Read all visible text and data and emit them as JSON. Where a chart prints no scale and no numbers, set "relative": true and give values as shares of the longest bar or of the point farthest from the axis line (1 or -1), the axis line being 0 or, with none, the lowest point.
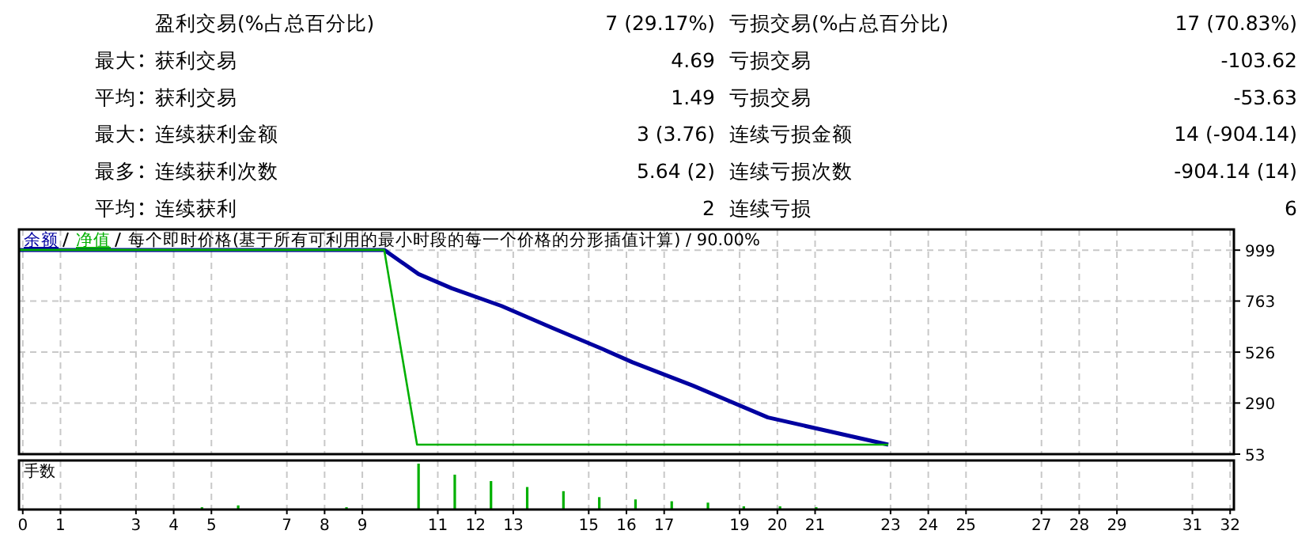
{
  "chart_data": [
    {
      "type": "other",
      "categories": [
        null,
        "最大",
        "平均",
        "最大",
        "最多",
        "平均"
      ],
      "annotations": [
        "盈利交易(%占总百分比)",
        "7 (29.17%)",
        "亏损交易(%占总百分比)",
        "17 (70.83%)",
        "获利交易",
        "4.69",
        "亏损交易",
        "-103.62",
        "获利交易",
        "1.49",
        "亏损交易",
        "-53.63",
        "连续获利金额",
        "3 (3.76)",
        "连续亏损金额",
        "14 (-904.14)",
        "连续获利次数",
        "5.64 (2)",
        "连续亏损次数",
        "-904.14 (14)",
        "连续获利",
        "2",
        "连续亏损",
        "6"
      ]
    },
    {
      "type": "line",
      "subtitle": "每个即时价格(基于所有可利用的最小时段的每一个价格的分形插值计算) / 90.00%",
      "legend": "top left",
      "grid": true,
      "tick_labels": "y",
      "marker": "none",
      "line_style": "solid",
      "xlim": [
        -0.1,
        32.1
      ],
      "xticks": [
        0,
        1,
        3,
        4,
        5,
        7,
        8,
        9,
        11,
        12,
        13,
        15,
        16,
        17,
        19,
        20,
        21,
        23,
        24,
        25,
        27,
        28,
        29,
        31,
        32
      ],
      "ylim": [
        53,
        1095
      ],
      "yticks": [
        53,
        290,
        526,
        763,
        999
      ],
      "series": [
        {
          "name": "余额",
          "color": "#0000a0",
          "x": [
            -0.1,
            9.58,
            10.49,
            11.37,
            12.69,
            14.05,
            15.36,
            16.16,
            17.76,
            19.75,
            22.94
          ],
          "values": [
            1000,
            1000,
            888,
            822,
            740,
            637,
            541,
            479,
            371,
            223,
            97
          ]
        },
        {
          "name": "净值",
          "color": "#00b000",
          "x": [
            -0.1,
            9.58,
            10.45,
            22.94
          ],
          "values": [
            1000,
            1000,
            97,
            97
          ]
        }
      ]
    },
    {
      "type": "bar",
      "title": "手数",
      "relative": true,
      "grid": true,
      "tick_labels": "x",
      "color": "#00b000",
      "xlim": [
        -0.1,
        32.1
      ],
      "xticks": [
        0,
        1,
        3,
        4,
        5,
        7,
        8,
        9,
        11,
        12,
        13,
        15,
        16,
        17,
        19,
        20,
        21,
        23,
        24,
        25,
        27,
        28,
        29,
        31,
        32
      ],
      "x": [
        4.75,
        5.71,
        8.58,
        10.49,
        11.45,
        12.41,
        13.37,
        14.33,
        15.28,
        16.24,
        17.2,
        18.16,
        19.11,
        20.07,
        21.03
      ],
      "values": [
        0.05,
        0.09,
        0.05,
        1,
        0.76,
        0.62,
        0.49,
        0.4,
        0.27,
        0.22,
        0.18,
        0.15,
        0.07,
        0.07,
        0.05
      ]
    }
  ]
}
